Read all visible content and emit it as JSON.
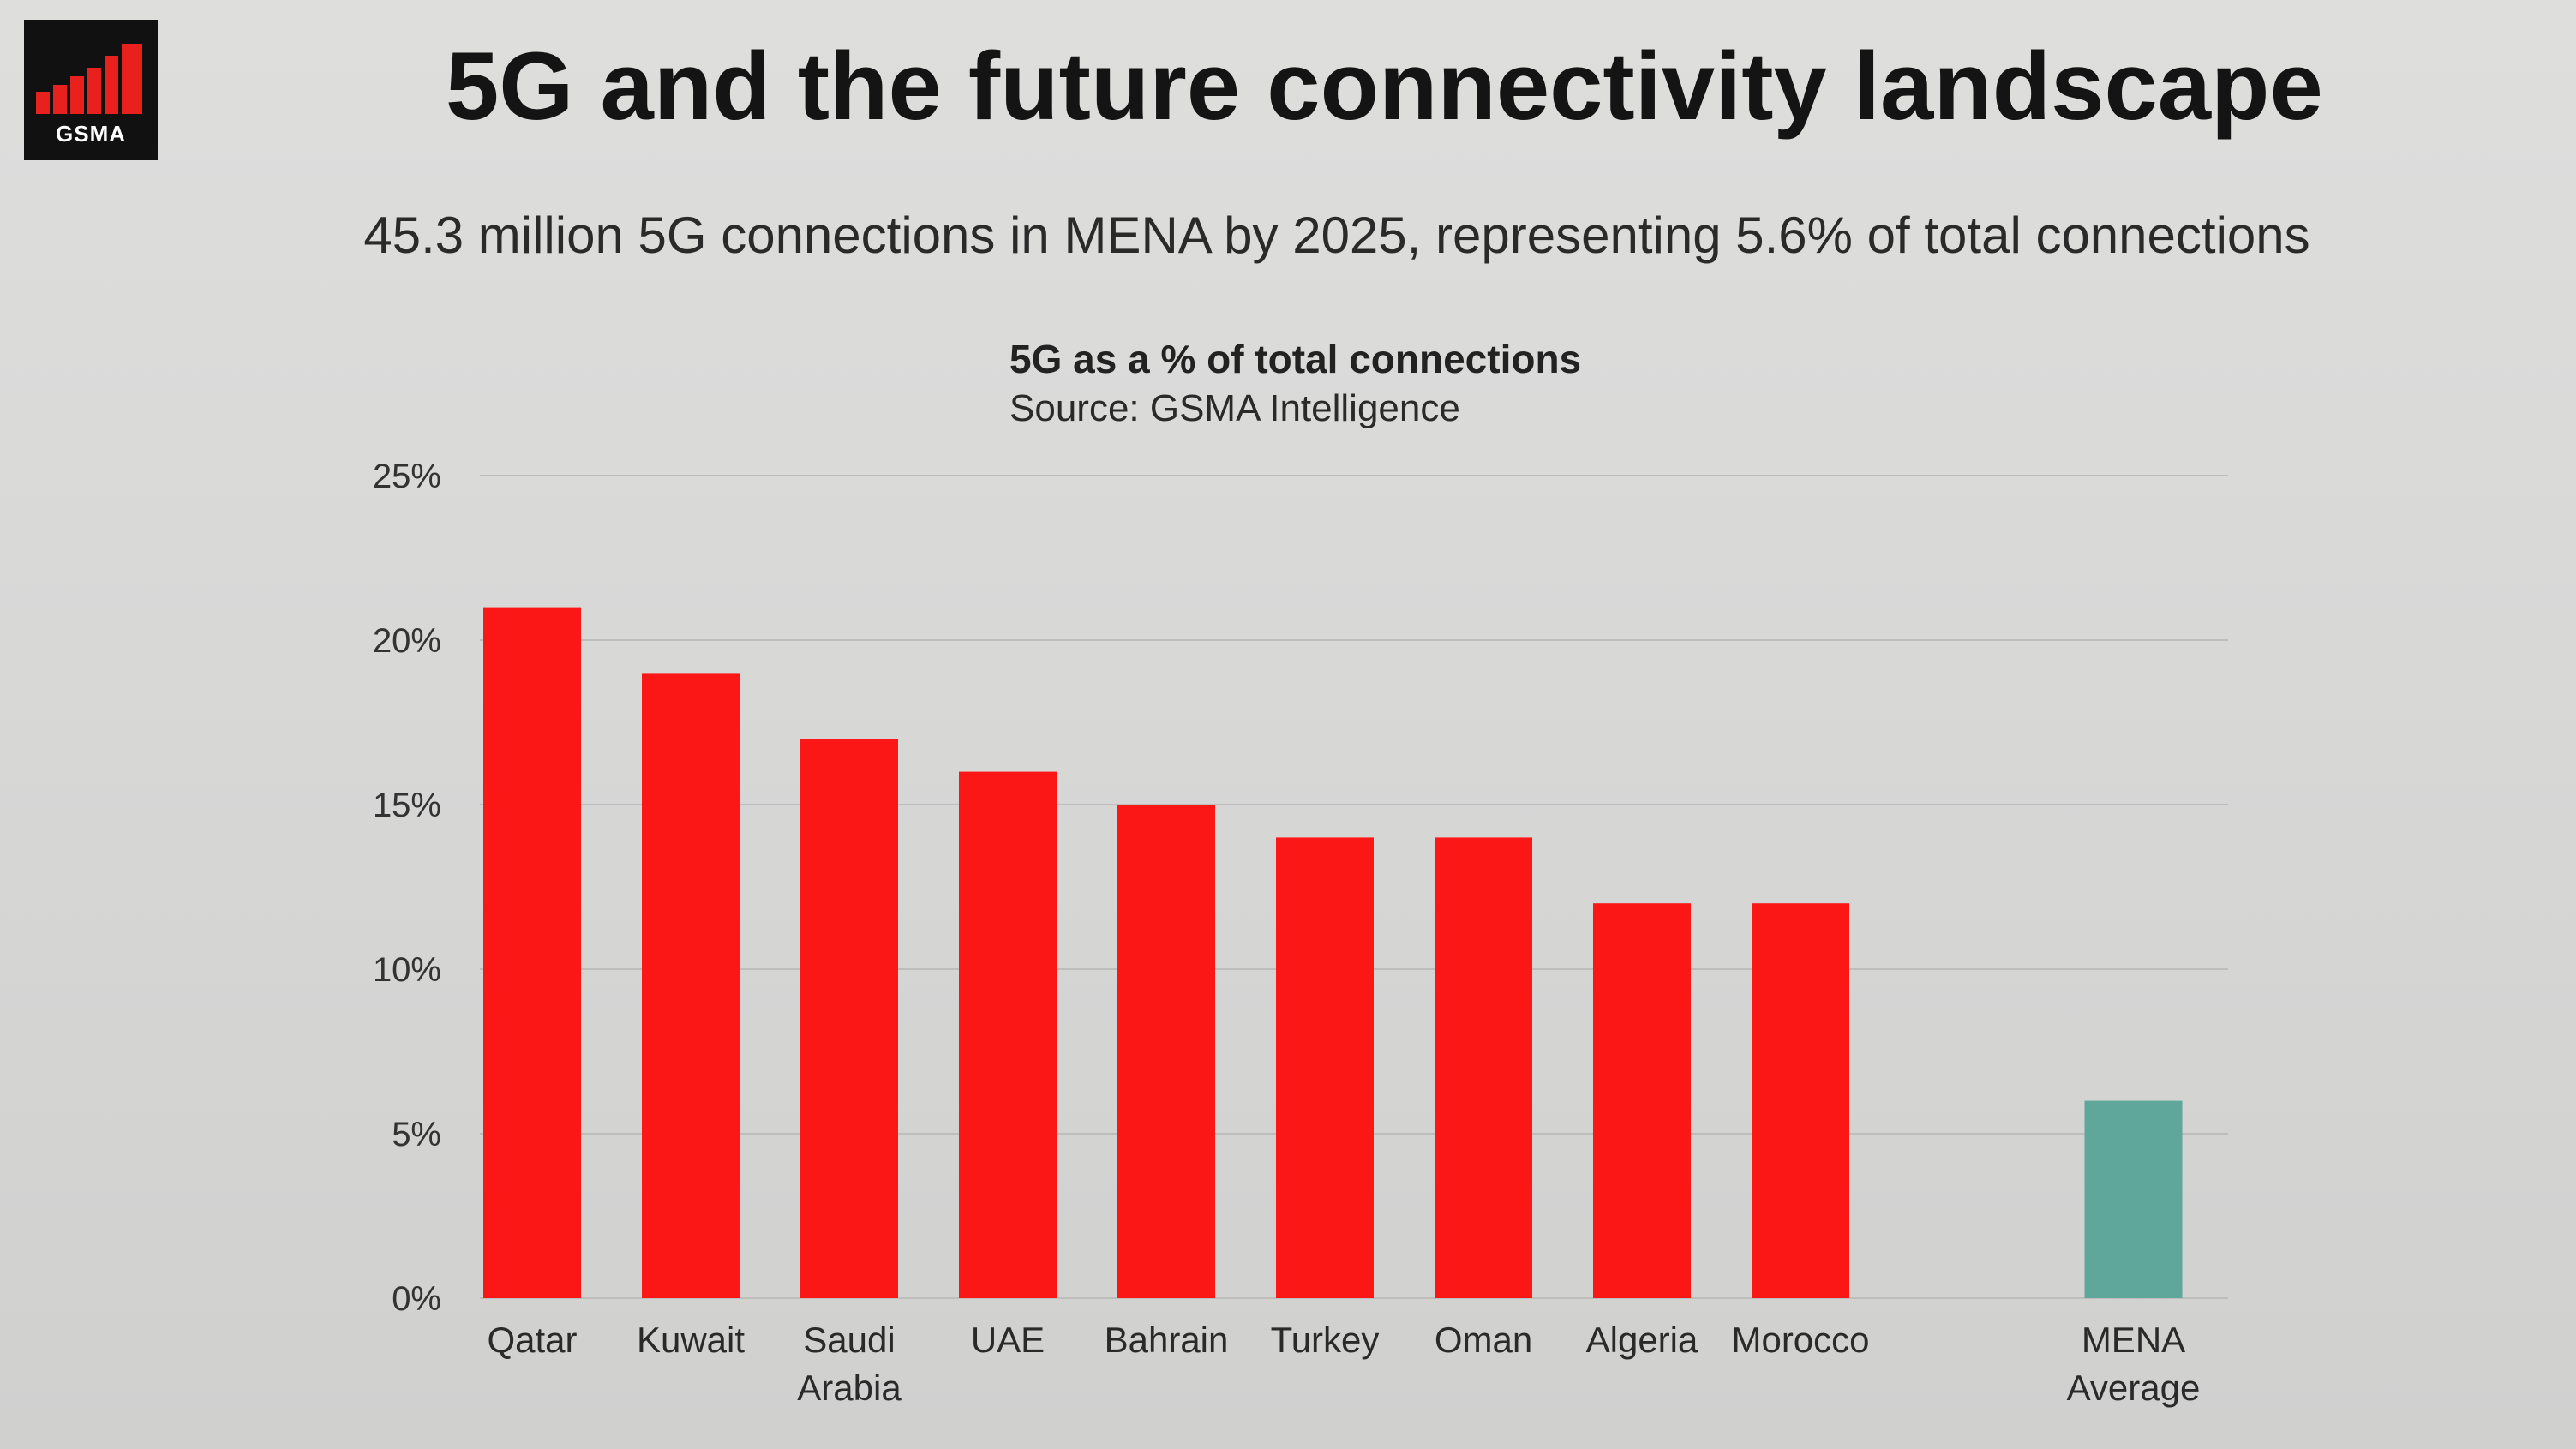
{
  "header": {
    "logo_text": "GSMA",
    "title": "5G and the future connectivity landscape",
    "subtitle": "45.3 million 5G connections in MENA by 2025, representing 5.6% of total connections"
  },
  "chart_data": {
    "type": "bar",
    "title": "5G as a % of total connections",
    "source": "Source: GSMA Intelligence",
    "xlabel": "",
    "ylabel": "",
    "ylim": [
      0,
      25
    ],
    "yticks": [
      "0%",
      "5%",
      "10%",
      "15%",
      "20%",
      "25%"
    ],
    "grid": true,
    "categories": [
      "Qatar",
      "Kuwait",
      "Saudi Arabia",
      "UAE",
      "Bahrain",
      "Turkey",
      "Oman",
      "Algeria",
      "Morocco",
      "MENA Average"
    ],
    "category_lines": [
      [
        "Qatar"
      ],
      [
        "Kuwait"
      ],
      [
        "Saudi",
        "Arabia"
      ],
      [
        "UAE"
      ],
      [
        "Bahrain"
      ],
      [
        "Turkey"
      ],
      [
        "Oman"
      ],
      [
        "Algeria"
      ],
      [
        "Morocco"
      ],
      [
        "MENA",
        "Average"
      ]
    ],
    "values": [
      21,
      19,
      17,
      16,
      15,
      14,
      14,
      12,
      12,
      6
    ],
    "colors": [
      "#fb1716",
      "#fb1716",
      "#fb1716",
      "#fb1716",
      "#fb1716",
      "#fb1716",
      "#fb1716",
      "#fb1716",
      "#fb1716",
      "#5ea79a"
    ]
  }
}
